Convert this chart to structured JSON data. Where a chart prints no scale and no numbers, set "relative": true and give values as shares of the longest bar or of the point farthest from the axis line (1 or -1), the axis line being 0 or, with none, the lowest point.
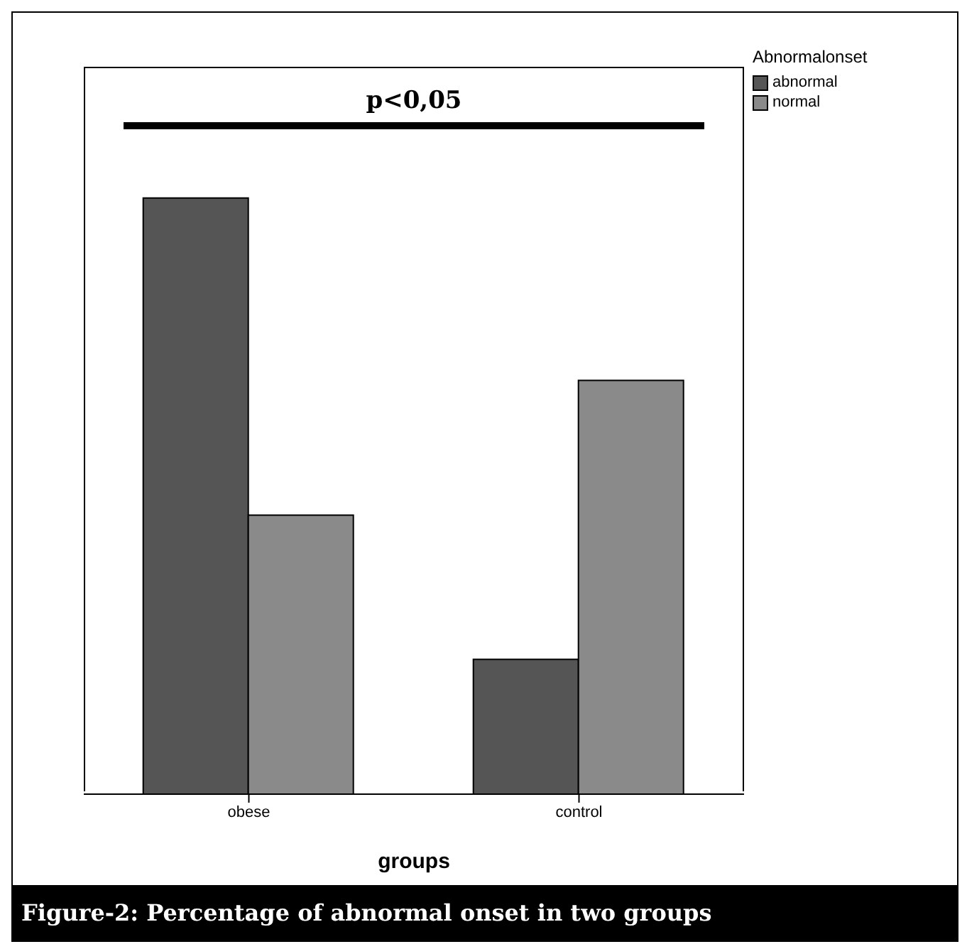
{
  "chart_data": {
    "type": "bar",
    "relative": true,
    "title": "Figure-2: Percentage of abnormal onset in two groups",
    "xlabel": "groups",
    "legend_title": "Abnormalonset",
    "legend": "top right",
    "categories": [
      "obese",
      "control"
    ],
    "annotations": [
      "p<0,05"
    ],
    "series": [
      {
        "name": "abnormal",
        "color": "#555555",
        "values": [
          1,
          0.226
        ]
      },
      {
        "name": "normal",
        "color": "#8a8a8a",
        "values": [
          0.468,
          0.694
        ]
      }
    ]
  }
}
